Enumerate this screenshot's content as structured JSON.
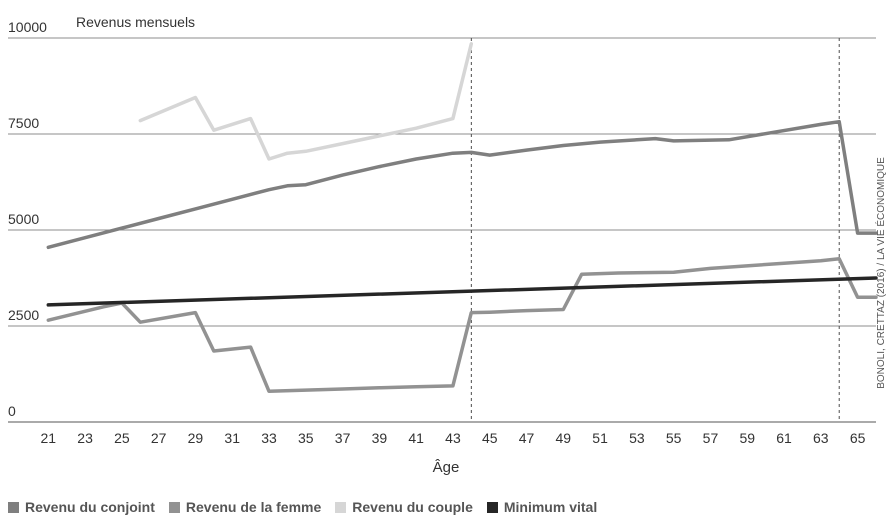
{
  "chart_data": {
    "type": "line",
    "ylabel": "Revenus mensuels",
    "xlabel": "Âge",
    "ylim": [
      0,
      10000
    ],
    "yticks": [
      0,
      2500,
      5000,
      7500,
      10000
    ],
    "ytick_labels": [
      "0",
      "2500",
      "5000",
      "7500",
      "10000"
    ],
    "xlim": [
      19.5,
      66
    ],
    "xticks": [
      21,
      23,
      25,
      27,
      29,
      31,
      33,
      35,
      37,
      39,
      41,
      43,
      45,
      47,
      49,
      51,
      53,
      55,
      57,
      59,
      61,
      63,
      65
    ],
    "xtick_labels": [
      "21",
      "23",
      "25",
      "27",
      "29",
      "31",
      "33",
      "35",
      "37",
      "39",
      "41",
      "43",
      "45",
      "47",
      "49",
      "51",
      "53",
      "55",
      "57",
      "59",
      "61",
      "63",
      "65"
    ],
    "vlines": [
      44,
      64
    ],
    "grid": "horizontal",
    "legend_position": "bottom",
    "source": "BONOLI, CRETTAZ (2016) / LA VIE ÉCONOMIQUE",
    "series": [
      {
        "name": "Revenu du conjoint",
        "color": "#7f7f7f",
        "points": [
          [
            21,
            4550
          ],
          [
            25,
            5050
          ],
          [
            27,
            5300
          ],
          [
            29,
            5550
          ],
          [
            31,
            5800
          ],
          [
            33,
            6050
          ],
          [
            34,
            6150
          ],
          [
            35,
            6180
          ],
          [
            37,
            6430
          ],
          [
            39,
            6650
          ],
          [
            41,
            6850
          ],
          [
            43,
            7000
          ],
          [
            44,
            7020
          ],
          [
            45,
            6950
          ],
          [
            47,
            7080
          ],
          [
            49,
            7200
          ],
          [
            51,
            7290
          ],
          [
            53,
            7350
          ],
          [
            54,
            7380
          ],
          [
            55,
            7320
          ],
          [
            58,
            7350
          ],
          [
            63,
            7750
          ],
          [
            64,
            7820
          ],
          [
            65,
            4920
          ],
          [
            66,
            4920
          ]
        ]
      },
      {
        "name": "Revenu de la femme",
        "color": "#929292",
        "points": [
          [
            21,
            2650
          ],
          [
            24,
            3000
          ],
          [
            25,
            3100
          ],
          [
            26,
            2600
          ],
          [
            29,
            2850
          ],
          [
            30,
            1850
          ],
          [
            32,
            1950
          ],
          [
            33,
            800
          ],
          [
            35,
            830
          ],
          [
            37,
            860
          ],
          [
            39,
            890
          ],
          [
            41,
            920
          ],
          [
            43,
            940
          ],
          [
            44,
            2850
          ],
          [
            45,
            2860
          ],
          [
            47,
            2900
          ],
          [
            49,
            2930
          ],
          [
            50,
            3850
          ],
          [
            52,
            3880
          ],
          [
            55,
            3900
          ],
          [
            57,
            4000
          ],
          [
            63,
            4200
          ],
          [
            64,
            4250
          ],
          [
            65,
            3250
          ],
          [
            66,
            3250
          ]
        ]
      },
      {
        "name": "Revenu du couple",
        "color": "#d6d6d6",
        "points": [
          [
            26,
            7850
          ],
          [
            29,
            8450
          ],
          [
            30,
            7600
          ],
          [
            32,
            7900
          ],
          [
            33,
            6850
          ],
          [
            34,
            7000
          ],
          [
            35,
            7050
          ],
          [
            37,
            7250
          ],
          [
            39,
            7450
          ],
          [
            41,
            7650
          ],
          [
            43,
            7900
          ],
          [
            44,
            9850
          ]
        ]
      },
      {
        "name": "Minimum vital",
        "color": "#262626",
        "points": [
          [
            21,
            3050
          ],
          [
            66,
            3750
          ]
        ]
      }
    ]
  }
}
